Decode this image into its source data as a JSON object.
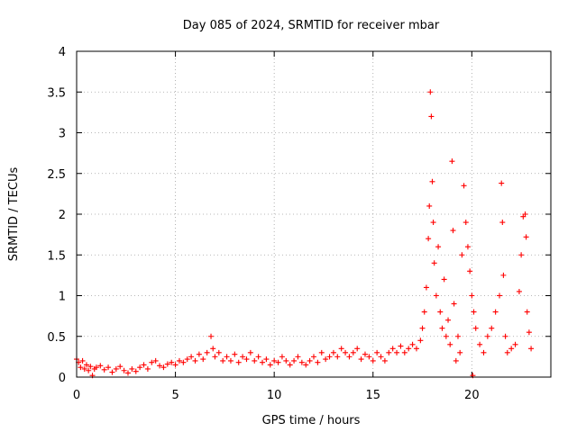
{
  "chart_data": {
    "type": "scatter",
    "title": "Day 085 of 2024, SRMTID for receiver mbar",
    "xlabel": "GPS time / hours",
    "ylabel": "SRMTID / TECUs",
    "xlim": [
      0,
      24
    ],
    "ylim": [
      0,
      4
    ],
    "x_ticks": [
      0,
      5,
      10,
      15,
      20
    ],
    "x_tick_labels": [
      "0",
      "5",
      "10",
      "15",
      "20"
    ],
    "y_ticks": [
      0,
      0.5,
      1,
      1.5,
      2,
      2.5,
      3,
      3.5,
      4
    ],
    "y_tick_labels": [
      "0",
      "0.5",
      "1",
      "1.5",
      "2",
      "2.5",
      "3",
      "3.5",
      "4"
    ],
    "grid": true,
    "legend": "none",
    "series": [
      {
        "name": "SRMTID",
        "color": "#ff0000",
        "marker": "plus",
        "points": [
          [
            0.0,
            0.22
          ],
          [
            0.1,
            0.18
          ],
          [
            0.2,
            0.12
          ],
          [
            0.3,
            0.2
          ],
          [
            0.4,
            0.1
          ],
          [
            0.5,
            0.15
          ],
          [
            0.6,
            0.08
          ],
          [
            0.7,
            0.13
          ],
          [
            0.8,
            0.02
          ],
          [
            0.9,
            0.1
          ],
          [
            1.0,
            0.12
          ],
          [
            1.2,
            0.14
          ],
          [
            1.4,
            0.09
          ],
          [
            1.6,
            0.12
          ],
          [
            1.8,
            0.06
          ],
          [
            2.0,
            0.1
          ],
          [
            2.2,
            0.13
          ],
          [
            2.4,
            0.08
          ],
          [
            2.6,
            0.05
          ],
          [
            2.8,
            0.1
          ],
          [
            3.0,
            0.07
          ],
          [
            3.2,
            0.12
          ],
          [
            3.4,
            0.15
          ],
          [
            3.6,
            0.1
          ],
          [
            3.8,
            0.18
          ],
          [
            4.0,
            0.2
          ],
          [
            4.2,
            0.14
          ],
          [
            4.4,
            0.12
          ],
          [
            4.6,
            0.16
          ],
          [
            4.8,
            0.18
          ],
          [
            5.0,
            0.15
          ],
          [
            5.2,
            0.2
          ],
          [
            5.4,
            0.18
          ],
          [
            5.6,
            0.22
          ],
          [
            5.8,
            0.25
          ],
          [
            6.0,
            0.2
          ],
          [
            6.2,
            0.28
          ],
          [
            6.4,
            0.22
          ],
          [
            6.6,
            0.3
          ],
          [
            6.8,
            0.5
          ],
          [
            6.9,
            0.35
          ],
          [
            7.0,
            0.25
          ],
          [
            7.2,
            0.3
          ],
          [
            7.4,
            0.2
          ],
          [
            7.6,
            0.25
          ],
          [
            7.8,
            0.2
          ],
          [
            8.0,
            0.28
          ],
          [
            8.2,
            0.18
          ],
          [
            8.4,
            0.25
          ],
          [
            8.6,
            0.22
          ],
          [
            8.8,
            0.3
          ],
          [
            9.0,
            0.2
          ],
          [
            9.2,
            0.25
          ],
          [
            9.4,
            0.18
          ],
          [
            9.6,
            0.22
          ],
          [
            9.8,
            0.15
          ],
          [
            10.0,
            0.2
          ],
          [
            10.2,
            0.18
          ],
          [
            10.4,
            0.25
          ],
          [
            10.6,
            0.2
          ],
          [
            10.8,
            0.15
          ],
          [
            11.0,
            0.2
          ],
          [
            11.2,
            0.25
          ],
          [
            11.4,
            0.18
          ],
          [
            11.6,
            0.15
          ],
          [
            11.8,
            0.2
          ],
          [
            12.0,
            0.25
          ],
          [
            12.2,
            0.18
          ],
          [
            12.4,
            0.3
          ],
          [
            12.6,
            0.22
          ],
          [
            12.8,
            0.25
          ],
          [
            13.0,
            0.3
          ],
          [
            13.2,
            0.25
          ],
          [
            13.4,
            0.35
          ],
          [
            13.6,
            0.3
          ],
          [
            13.8,
            0.25
          ],
          [
            14.0,
            0.3
          ],
          [
            14.2,
            0.35
          ],
          [
            14.4,
            0.22
          ],
          [
            14.6,
            0.28
          ],
          [
            14.8,
            0.25
          ],
          [
            15.0,
            0.2
          ],
          [
            15.2,
            0.3
          ],
          [
            15.4,
            0.25
          ],
          [
            15.6,
            0.2
          ],
          [
            15.8,
            0.3
          ],
          [
            16.0,
            0.35
          ],
          [
            16.2,
            0.3
          ],
          [
            16.4,
            0.38
          ],
          [
            16.6,
            0.3
          ],
          [
            16.8,
            0.35
          ],
          [
            17.0,
            0.4
          ],
          [
            17.2,
            0.35
          ],
          [
            17.4,
            0.45
          ],
          [
            17.5,
            0.6
          ],
          [
            17.6,
            0.8
          ],
          [
            17.7,
            1.1
          ],
          [
            17.8,
            1.7
          ],
          [
            17.85,
            2.1
          ],
          [
            17.9,
            3.5
          ],
          [
            17.95,
            3.2
          ],
          [
            18.0,
            2.4
          ],
          [
            18.05,
            1.9
          ],
          [
            18.1,
            1.4
          ],
          [
            18.2,
            1.0
          ],
          [
            18.3,
            1.6
          ],
          [
            18.4,
            0.8
          ],
          [
            18.5,
            0.6
          ],
          [
            18.6,
            1.2
          ],
          [
            18.7,
            0.5
          ],
          [
            18.8,
            0.7
          ],
          [
            18.9,
            0.4
          ],
          [
            19.0,
            2.65
          ],
          [
            19.05,
            1.8
          ],
          [
            19.1,
            0.9
          ],
          [
            19.2,
            0.2
          ],
          [
            19.3,
            0.5
          ],
          [
            19.4,
            0.3
          ],
          [
            19.5,
            1.5
          ],
          [
            19.6,
            2.35
          ],
          [
            19.7,
            1.9
          ],
          [
            19.8,
            1.6
          ],
          [
            19.9,
            1.3
          ],
          [
            20.0,
            1.0
          ],
          [
            20.05,
            0.02
          ],
          [
            20.1,
            0.8
          ],
          [
            20.2,
            0.6
          ],
          [
            20.4,
            0.4
          ],
          [
            20.6,
            0.3
          ],
          [
            20.8,
            0.5
          ],
          [
            21.0,
            0.6
          ],
          [
            21.2,
            0.8
          ],
          [
            21.4,
            1.0
          ],
          [
            21.5,
            2.38
          ],
          [
            21.55,
            1.9
          ],
          [
            21.6,
            1.25
          ],
          [
            21.7,
            0.5
          ],
          [
            21.8,
            0.3
          ],
          [
            22.0,
            0.35
          ],
          [
            22.2,
            0.4
          ],
          [
            22.4,
            1.05
          ],
          [
            22.5,
            1.5
          ],
          [
            22.6,
            1.97
          ],
          [
            22.7,
            2.0
          ],
          [
            22.75,
            1.72
          ],
          [
            22.8,
            0.8
          ],
          [
            22.9,
            0.55
          ],
          [
            23.0,
            0.35
          ]
        ]
      }
    ]
  }
}
